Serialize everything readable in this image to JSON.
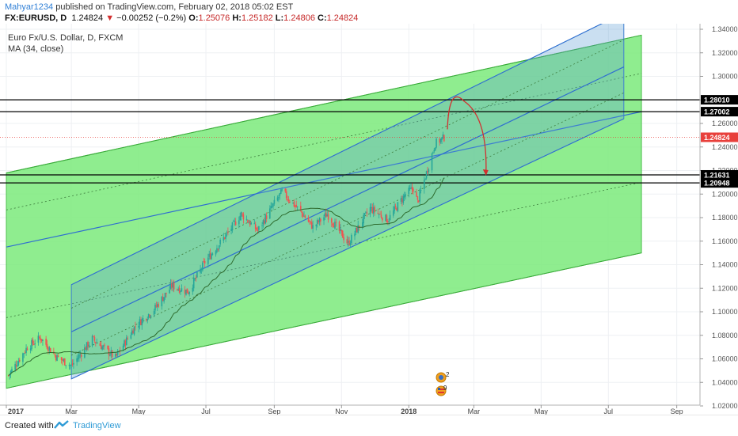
{
  "header": {
    "author": "Mahyar1234",
    "published_text": "published on TradingView.com, February 02, 2018 05:02 EST",
    "symbol_line": "FX:EURUSD, D",
    "last": "1.24824",
    "change": "−0.00252 (−0.2%)",
    "o_label": "O:",
    "o_value": "1.25076",
    "h_label": "H:",
    "h_value": "1.25182",
    "l_label": "L:",
    "l_value": "1.24806",
    "c_label": "C:",
    "c_value": "1.24824"
  },
  "legend": {
    "title": "Euro Fx/U.S. Dollar, D, FXCM",
    "indicator": "MA (34, close)"
  },
  "footer": {
    "created_with": "Created with",
    "brand": "TradingView"
  },
  "colors": {
    "up": "#26a69a",
    "down": "#ef5350",
    "channel_green": "#7bea7b",
    "channel_blue": "#5b9bd5",
    "arrow": "#d32f2f",
    "price_tag": "#e8403b"
  },
  "event_badges": [
    {
      "icon": "earnings-globe-icon",
      "label": "2"
    },
    {
      "icon": "flag-icon",
      "label": "9"
    }
  ],
  "chart_data": {
    "type": "candlestick",
    "title": "Euro Fx/U.S. Dollar, D, FXCM",
    "x_tick_labels": [
      "2017",
      "Mar",
      "May",
      "Jul",
      "Sep",
      "Nov",
      "2018",
      "Mar",
      "May",
      "Jul",
      "Sep"
    ],
    "y_tick_labels": [
      "1.34000",
      "1.32000",
      "1.30000",
      "1.28000",
      "1.26000",
      "1.24000",
      "1.22000",
      "1.20000",
      "1.18000",
      "1.16000",
      "1.14000",
      "1.12000",
      "1.10000",
      "1.08000",
      "1.06000",
      "1.04000",
      "1.02000"
    ],
    "ylim": [
      1.0165,
      1.344
    ],
    "price_path": [
      [
        "2017-01-03",
        1.046
      ],
      [
        "2017-01-20",
        1.07
      ],
      [
        "2017-02-01",
        1.078
      ],
      [
        "2017-02-15",
        1.062
      ],
      [
        "2017-03-01",
        1.054
      ],
      [
        "2017-03-20",
        1.077
      ],
      [
        "2017-04-10",
        1.061
      ],
      [
        "2017-04-28",
        1.088
      ],
      [
        "2017-05-15",
        1.102
      ],
      [
        "2017-05-31",
        1.122
      ],
      [
        "2017-06-15",
        1.117
      ],
      [
        "2017-06-30",
        1.142
      ],
      [
        "2017-07-20",
        1.166
      ],
      [
        "2017-08-02",
        1.183
      ],
      [
        "2017-08-17",
        1.169
      ],
      [
        "2017-09-01",
        1.192
      ],
      [
        "2017-09-08",
        1.202
      ],
      [
        "2017-09-25",
        1.185
      ],
      [
        "2017-10-06",
        1.172
      ],
      [
        "2017-10-19",
        1.183
      ],
      [
        "2017-11-07",
        1.158
      ],
      [
        "2017-11-27",
        1.188
      ],
      [
        "2017-12-13",
        1.178
      ],
      [
        "2017-12-29",
        1.2
      ],
      [
        "2018-01-05",
        1.205
      ],
      [
        "2018-01-09",
        1.193
      ],
      [
        "2018-01-25",
        1.243
      ],
      [
        "2018-02-02",
        1.248
      ]
    ],
    "ma": {
      "name": "MA (34, close)",
      "period": 34
    },
    "horizontal_levels": [
      1.2801,
      1.27002,
      1.21631,
      1.20948
    ],
    "level_labels": [
      "1.28010",
      "1.27002",
      "1.21631",
      "1.20948"
    ],
    "last_price": 1.24824,
    "last_price_label": "1.24824",
    "channels": [
      {
        "name": "green",
        "upper": [
          [
            "2017-01-01",
            1.218
          ],
          [
            "2018-07-31",
            1.335
          ]
        ],
        "middle": [
          [
            "2017-01-01",
            1.155
          ],
          [
            "2018-07-31",
            1.27
          ]
        ],
        "lower": [
          [
            "2017-01-01",
            1.035
          ],
          [
            "2018-07-31",
            1.15
          ]
        ]
      },
      {
        "name": "blue",
        "upper": [
          [
            "2017-03-01",
            1.123
          ],
          [
            "2018-07-15",
            1.354
          ]
        ],
        "middle": [
          [
            "2017-03-01",
            1.083
          ],
          [
            "2018-07-15",
            1.308
          ]
        ],
        "lower": [
          [
            "2017-03-01",
            1.043
          ],
          [
            "2018-07-15",
            1.264
          ]
        ]
      }
    ],
    "projection": [
      [
        "2018-02-05",
        1.255
      ],
      [
        "2018-02-20",
        1.279
      ],
      [
        "2018-03-12",
        1.217
      ]
    ]
  }
}
